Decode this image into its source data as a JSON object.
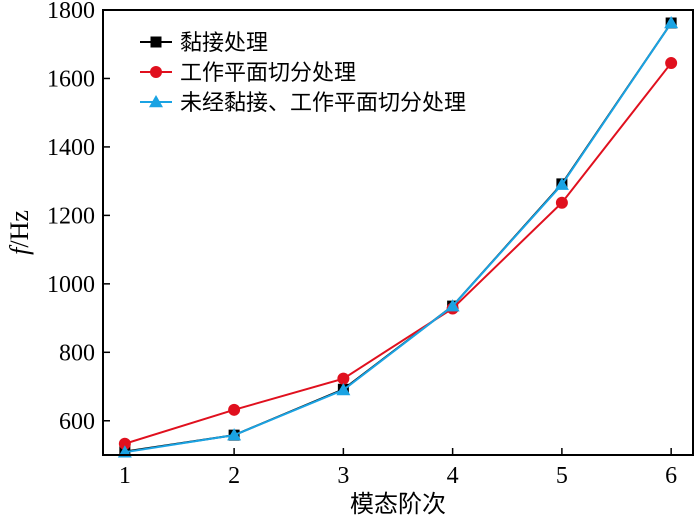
{
  "chart_data": {
    "type": "line",
    "title": "",
    "xlabel": "模态阶次",
    "ylabel_italic": "f",
    "ylabel_rest": "/Hz",
    "x": [
      1,
      2,
      3,
      4,
      5,
      6
    ],
    "xlim": [
      0.8,
      6.2
    ],
    "ylim": [
      500,
      1800
    ],
    "xticks": [
      "1",
      "2",
      "3",
      "4",
      "5",
      "6"
    ],
    "yticks": [
      "600",
      "800",
      "1000",
      "1200",
      "1400",
      "1600",
      "1800"
    ],
    "legend_position": "top-left",
    "series": [
      {
        "name": "黏接处理",
        "values": [
          510,
          558,
          692,
          935,
          1292,
          1762
        ],
        "color": "#000000",
        "marker": "square"
      },
      {
        "name": "工作平面切分处理",
        "values": [
          533,
          632,
          723,
          928,
          1237,
          1645
        ],
        "color": "#e0101e",
        "marker": "circle"
      },
      {
        "name": "未经黏接、工作平面切分处理",
        "values": [
          508,
          558,
          690,
          935,
          1290,
          1762
        ],
        "color": "#1aa3e3",
        "marker": "triangle"
      }
    ]
  }
}
